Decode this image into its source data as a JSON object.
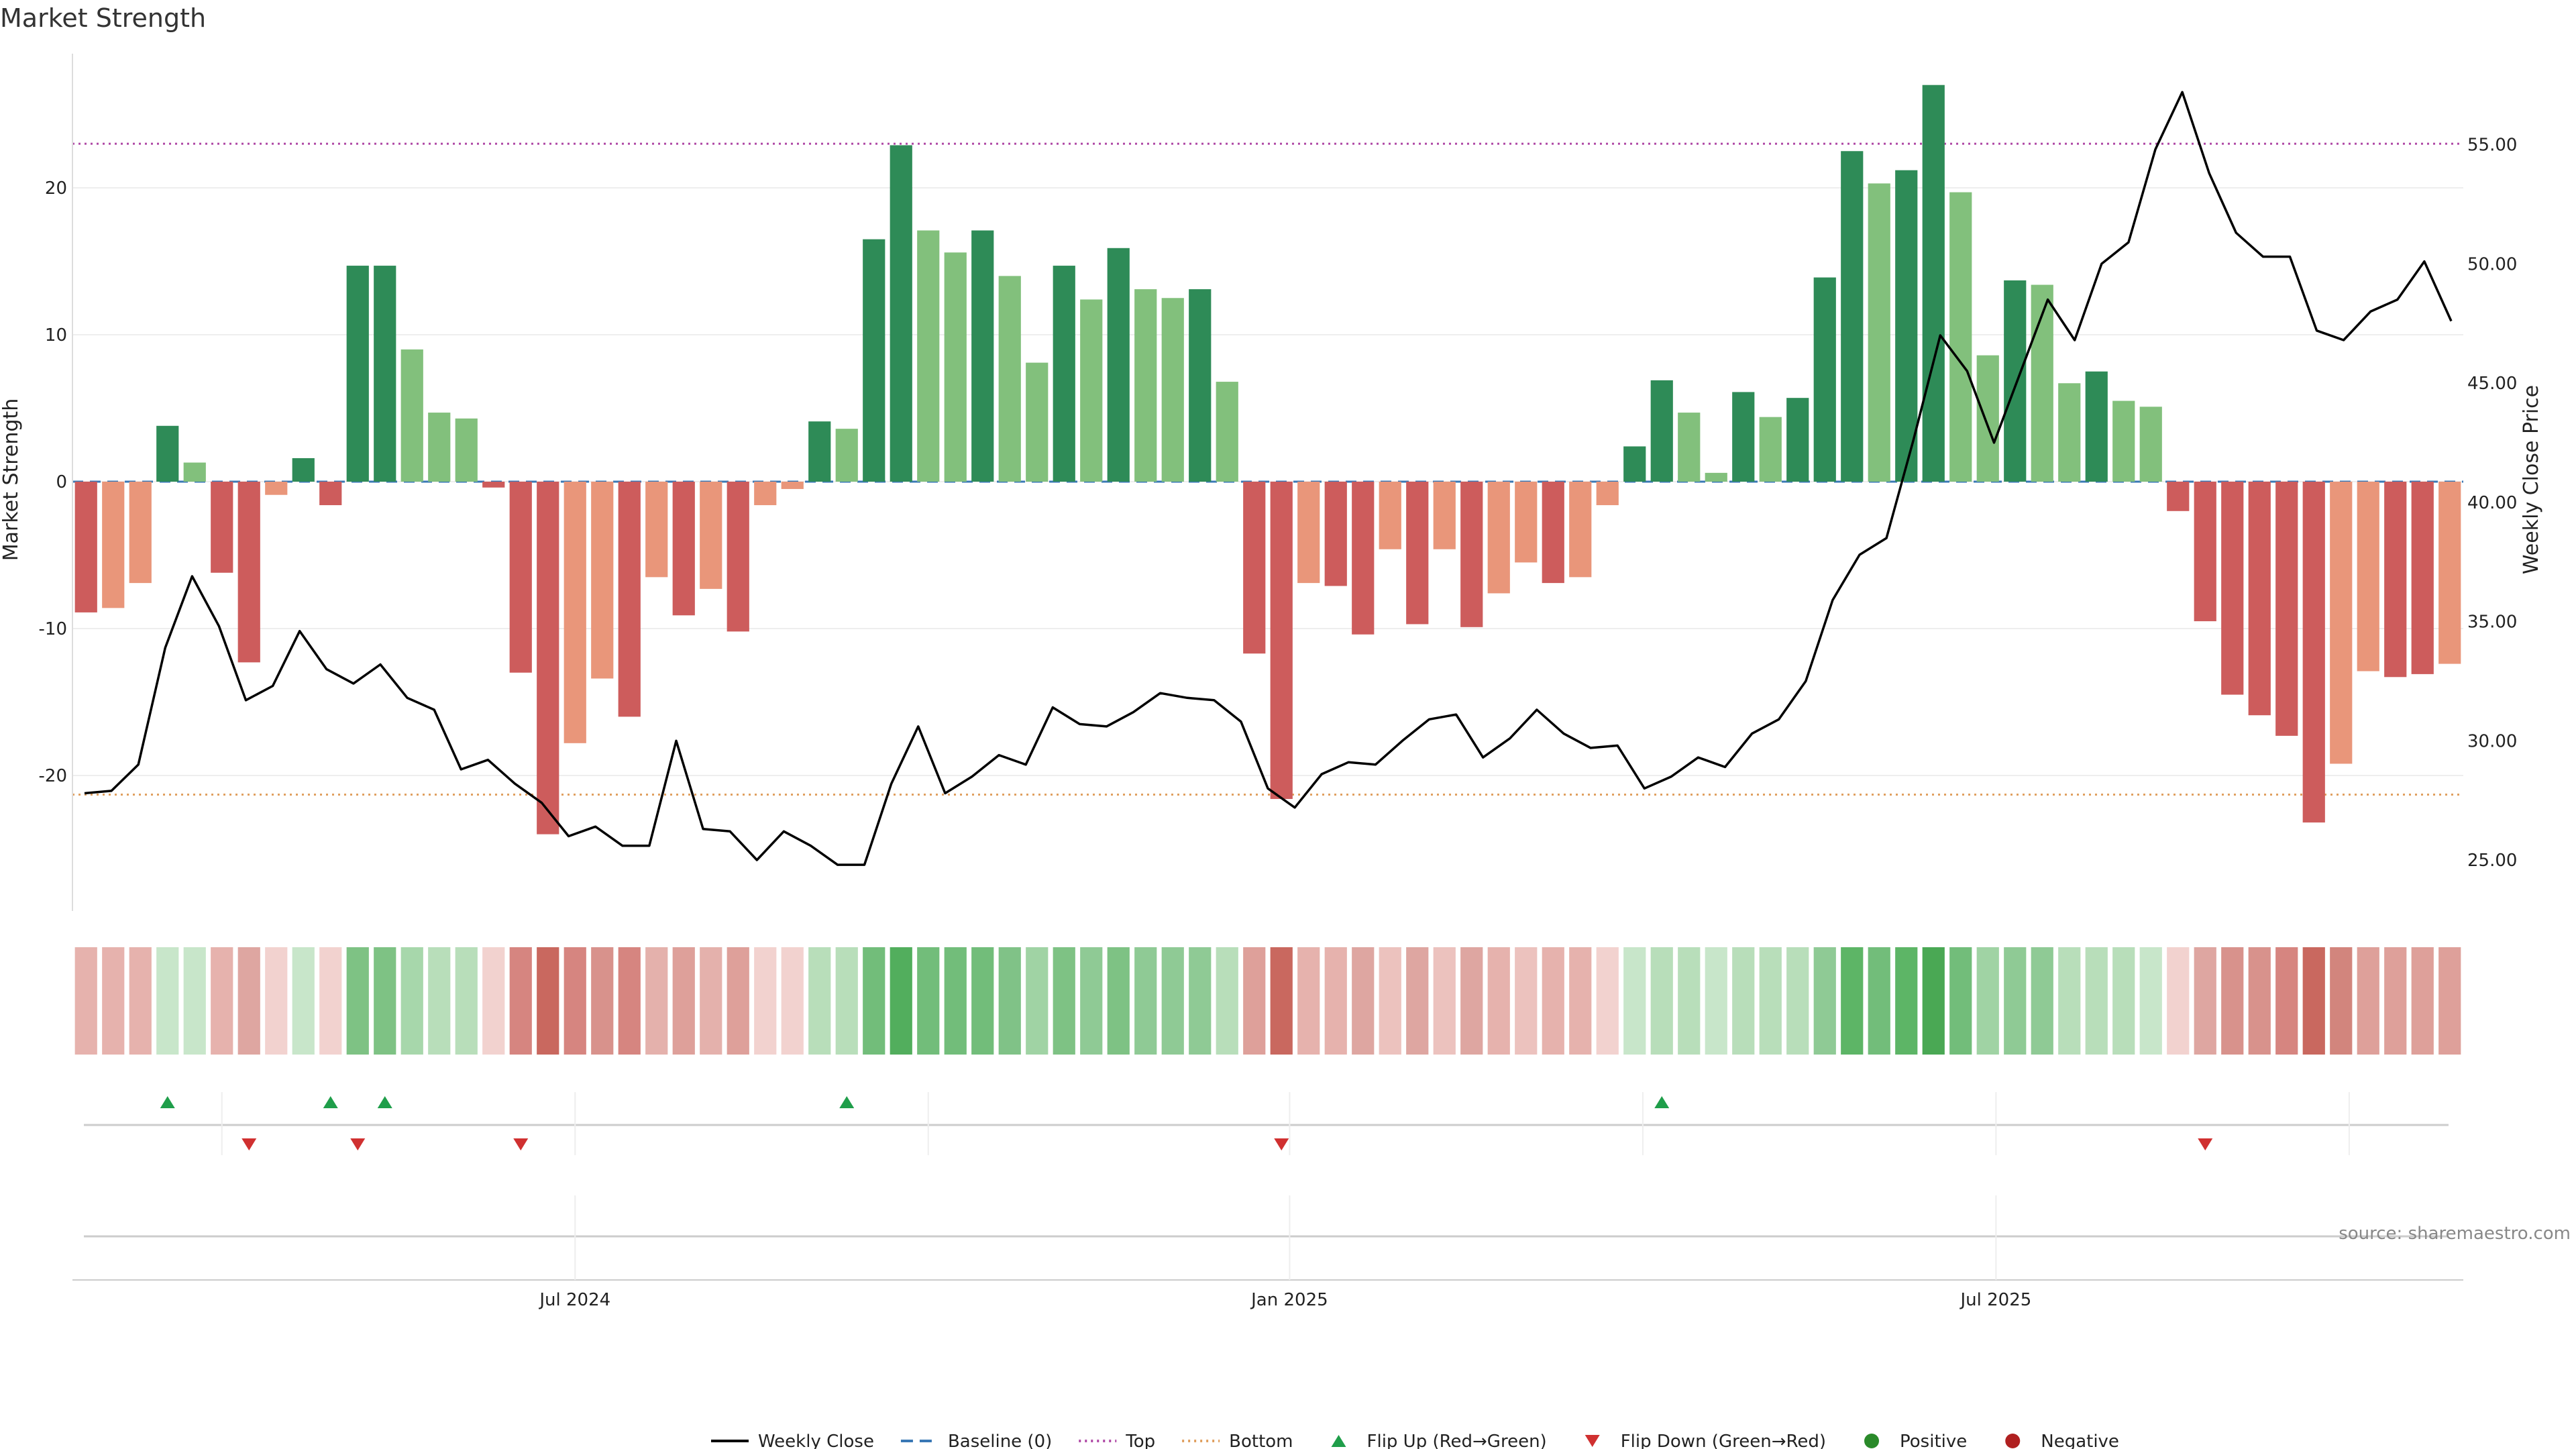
{
  "chart_data": {
    "type": "bar",
    "title": "Market Strength",
    "ylabel_left": "Market Strength",
    "ylabel_right": "Weekly Close Price",
    "ylim_left": [
      -29,
      29
    ],
    "ylim_right": [
      23.0,
      59.5
    ],
    "left_ticks": [
      20,
      10,
      0,
      -10,
      -20
    ],
    "right_ticks": [
      "55.00",
      "50.00",
      "45.00",
      "40.00",
      "35.00",
      "30.00",
      "25.00"
    ],
    "x_ticks": [
      "Jul 2024",
      "Jan 2025",
      "Jul 2025"
    ],
    "x_tick_index": [
      18.5,
      44.8,
      70.8
    ],
    "top_line": 23,
    "bottom_line": -21.3,
    "baseline": 0,
    "strength": [
      -8.9,
      -8.6,
      -6.9,
      3.8,
      1.3,
      -6.2,
      -12.3,
      -0.9,
      1.6,
      -1.6,
      14.7,
      14.7,
      9.0,
      4.7,
      4.3,
      -0.4,
      -13.0,
      -24.0,
      -17.8,
      -13.4,
      -16.0,
      -6.5,
      -9.1,
      -7.3,
      -10.2,
      -1.6,
      -0.5,
      4.1,
      3.6,
      16.5,
      22.9,
      17.1,
      15.6,
      17.1,
      14.0,
      8.1,
      14.7,
      12.4,
      15.9,
      13.1,
      12.5,
      13.1,
      6.8,
      -11.7,
      -21.6,
      -6.9,
      -7.1,
      -10.4,
      -4.6,
      -9.7,
      -4.6,
      -9.9,
      -7.6,
      -5.5,
      -6.9,
      -6.5,
      -1.6,
      2.4,
      6.9,
      4.7,
      0.6,
      6.1,
      4.4,
      5.7,
      13.9,
      22.5,
      20.3,
      21.2,
      27.0,
      19.7,
      8.6,
      13.7,
      13.4,
      6.7,
      7.5,
      5.5,
      5.1,
      -2.0,
      -9.5,
      -14.5,
      -15.9,
      -17.3,
      -23.2,
      -19.2,
      -12.9,
      -13.3,
      -13.1,
      -12.4
    ],
    "shade": [
      "d",
      "l",
      "l",
      "d",
      "l",
      "d",
      "d",
      "l",
      "d",
      "d",
      "d",
      "d",
      "l",
      "l",
      "l",
      "d",
      "d",
      "d",
      "l",
      "l",
      "d",
      "l",
      "d",
      "l",
      "d",
      "l",
      "l",
      "d",
      "l",
      "d",
      "d",
      "l",
      "l",
      "d",
      "l",
      "l",
      "d",
      "l",
      "d",
      "l",
      "l",
      "d",
      "l",
      "d",
      "d",
      "l",
      "d",
      "d",
      "l",
      "d",
      "l",
      "d",
      "l",
      "l",
      "d",
      "l",
      "l",
      "d",
      "d",
      "l",
      "l",
      "d",
      "l",
      "d",
      "d",
      "d",
      "l",
      "d",
      "d",
      "l",
      "l",
      "d",
      "l",
      "l",
      "d",
      "l",
      "l",
      "d",
      "d",
      "d",
      "d",
      "d",
      "d",
      "l",
      "l",
      "d",
      "d",
      "l"
    ],
    "weekly_close": [
      27.8,
      27.9,
      29.0,
      33.9,
      36.9,
      34.8,
      31.7,
      32.3,
      34.6,
      33.0,
      32.4,
      33.2,
      31.8,
      31.3,
      28.8,
      29.2,
      28.2,
      27.4,
      26.0,
      26.4,
      25.6,
      25.6,
      30.0,
      26.3,
      26.2,
      25.0,
      26.2,
      25.6,
      24.8,
      24.8,
      28.2,
      30.6,
      27.8,
      28.5,
      29.4,
      29.0,
      31.4,
      30.7,
      30.6,
      31.2,
      32.0,
      31.8,
      31.7,
      30.8,
      28.0,
      27.2,
      28.6,
      29.1,
      29.0,
      30.0,
      30.9,
      31.1,
      29.3,
      30.1,
      31.3,
      30.3,
      29.7,
      29.8,
      28.0,
      28.5,
      29.3,
      28.9,
      30.3,
      30.9,
      32.5,
      35.9,
      37.8,
      38.5,
      42.6,
      47.0,
      45.5,
      42.5,
      45.5,
      48.5,
      46.8,
      50.0,
      50.9,
      54.8,
      57.2,
      53.8,
      51.3,
      50.3,
      50.3,
      47.2,
      46.8,
      48.0,
      48.5,
      50.1,
      47.6
    ],
    "heat_colors": [
      "#e6b2ad",
      "#e6b2ad",
      "#e6b2ad",
      "#c8e6ca",
      "#c8e6ca",
      "#e6b2ad",
      "#dea6a1",
      "#f2d2cf",
      "#c8e6ca",
      "#f2d2cf",
      "#7ec284",
      "#7ec284",
      "#a7d7ab",
      "#b8deba",
      "#b8deba",
      "#f2d2cf",
      "#d68580",
      "#c9685f",
      "#d68580",
      "#d8928c",
      "#d68580",
      "#e4b1ac",
      "#dea09a",
      "#e4b1ac",
      "#dea09a",
      "#f2d2cf",
      "#f2d2cf",
      "#b8deba",
      "#b8deba",
      "#72bd7a",
      "#52ae5d",
      "#72bd7a",
      "#72bd7a",
      "#72bd7a",
      "#80c287",
      "#a0d3a4",
      "#7ec284",
      "#8fca95",
      "#7ec284",
      "#8fca95",
      "#8fca95",
      "#8fca95",
      "#b8deba",
      "#dea09a",
      "#c9685f",
      "#e6b2ad",
      "#e6b2ad",
      "#dea6a1",
      "#ecc2be",
      "#dea6a1",
      "#ecc2be",
      "#dea6a1",
      "#e6b2ad",
      "#ecc2be",
      "#e6b2ad",
      "#e6b2ad",
      "#f2d2cf",
      "#c8e6ca",
      "#b8deba",
      "#b8deba",
      "#c8e6ca",
      "#b8deba",
      "#b8deba",
      "#b8deba",
      "#8fca95",
      "#5db566",
      "#72bd7a",
      "#5db566",
      "#4aa854",
      "#72bd7a",
      "#a0d3a4",
      "#8fca95",
      "#8fca95",
      "#b8deba",
      "#b8deba",
      "#b8deba",
      "#c8e6ca",
      "#f2d2cf",
      "#dea6a1",
      "#d8928c",
      "#d8928c",
      "#d68580",
      "#c9685f",
      "#d2857d",
      "#dea09a",
      "#dea09a",
      "#dea09a",
      "#dea09a"
    ],
    "flip_up_index": [
      3,
      9,
      11,
      28,
      58
    ],
    "flip_down_index": [
      6,
      10,
      16,
      44,
      78
    ],
    "flip_tick_index": [
      5.5,
      18.5,
      31.5,
      44.8,
      57.8,
      70.8,
      83.8
    ],
    "source": "source: sharemaestro.com",
    "legend": [
      {
        "label": "Weekly Close",
        "kind": "line",
        "color": "#000000"
      },
      {
        "label": "Baseline (0)",
        "kind": "dash",
        "color": "#3a78b5"
      },
      {
        "label": "Top",
        "kind": "dot",
        "color": "#b04aa6"
      },
      {
        "label": "Bottom",
        "kind": "dot",
        "color": "#e0a060"
      },
      {
        "label": "Flip Up (Red→Green)",
        "kind": "tri-up",
        "color": "#1f9e4a"
      },
      {
        "label": "Flip Down (Green→Red)",
        "kind": "tri-down",
        "color": "#d03030"
      },
      {
        "label": "Positive",
        "kind": "circle",
        "color": "#2a8a2a"
      },
      {
        "label": "Negative",
        "kind": "circle",
        "color": "#b02020"
      }
    ],
    "colors": {
      "pos_dark": "#2e8b57",
      "pos_light": "#82c07c",
      "neg_dark": "#cd5c5c",
      "neg_light": "#e9967a",
      "grid": "#eeeeee",
      "axis": "#dddddd"
    }
  }
}
